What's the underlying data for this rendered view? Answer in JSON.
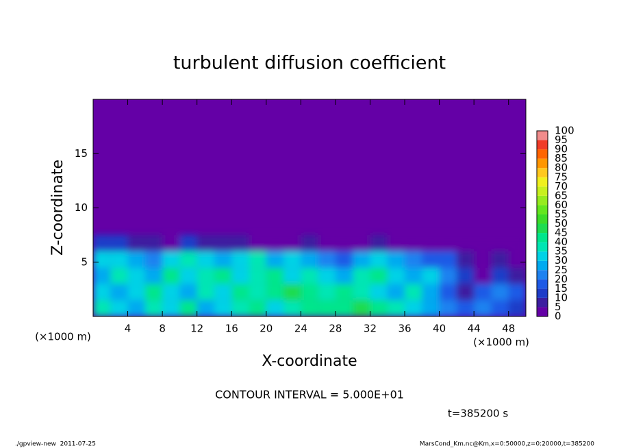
{
  "chart_data": {
    "type": "heatmap",
    "title": "turbulent diffusion coefficient",
    "x_label": "X-coordinate",
    "y_label": "Z-coordinate",
    "x_unit": "(×1000 m)",
    "x_unit_right": "(×1000 m)",
    "contour_note": "CONTOUR INTERVAL = 5.000E+01",
    "time_label": "t=385200 s",
    "footer_left": "./gpview-new  2011-07-25",
    "footer_right": "MarsCond_Km.nc@Km,x=0:50000,z=0:20000,t=385200",
    "xlim": [
      0,
      50
    ],
    "ylim": [
      0,
      20
    ],
    "xticks": [
      4,
      8,
      12,
      16,
      20,
      24,
      28,
      32,
      36,
      40,
      44,
      48
    ],
    "yticks": [
      5,
      10,
      15
    ],
    "x_edges": [
      0,
      2,
      4,
      6,
      8,
      10,
      12,
      14,
      16,
      18,
      20,
      22,
      24,
      26,
      28,
      30,
      32,
      34,
      36,
      38,
      40,
      42,
      44,
      46,
      48,
      50
    ],
    "y_edges": [
      0,
      1.5,
      3,
      4.5,
      6,
      7.5
    ],
    "z": [
      [
        35,
        30,
        25,
        35,
        30,
        40,
        25,
        30,
        35,
        40,
        30,
        35,
        40,
        40,
        40,
        45,
        40,
        35,
        30,
        25,
        20,
        15,
        20,
        15,
        10
      ],
      [
        30,
        25,
        30,
        40,
        30,
        25,
        35,
        30,
        40,
        35,
        40,
        45,
        40,
        35,
        40,
        35,
        30,
        25,
        35,
        25,
        15,
        5,
        15,
        20,
        15
      ],
      [
        25,
        35,
        30,
        25,
        40,
        30,
        35,
        40,
        30,
        35,
        40,
        30,
        35,
        30,
        25,
        35,
        40,
        30,
        25,
        30,
        20,
        10,
        0,
        10,
        5
      ],
      [
        30,
        30,
        25,
        20,
        30,
        35,
        30,
        25,
        30,
        35,
        25,
        30,
        25,
        20,
        15,
        25,
        30,
        25,
        20,
        15,
        15,
        5,
        0,
        5,
        0
      ],
      [
        10,
        10,
        5,
        5,
        0,
        10,
        5,
        5,
        5,
        0,
        0,
        0,
        5,
        0,
        0,
        0,
        5,
        0,
        0,
        0,
        0,
        0,
        0,
        0,
        0
      ]
    ],
    "levels": [
      0,
      5,
      10,
      15,
      20,
      25,
      30,
      35,
      40,
      45,
      50,
      55,
      60,
      65,
      70,
      75,
      80,
      85,
      90,
      95,
      100
    ],
    "level_colors": [
      "#6400a6",
      "#3c1ea0",
      "#1e3cc8",
      "#1e5ae6",
      "#1e82f0",
      "#00aaf0",
      "#00d2e6",
      "#00e6b4",
      "#00e68c",
      "#1edc50",
      "#3cdc28",
      "#64e61e",
      "#96eb1e",
      "#c8f01e",
      "#f0f01e",
      "#ffc81e",
      "#ff9600",
      "#ff6400",
      "#f03c28",
      "#f08c8c"
    ]
  }
}
